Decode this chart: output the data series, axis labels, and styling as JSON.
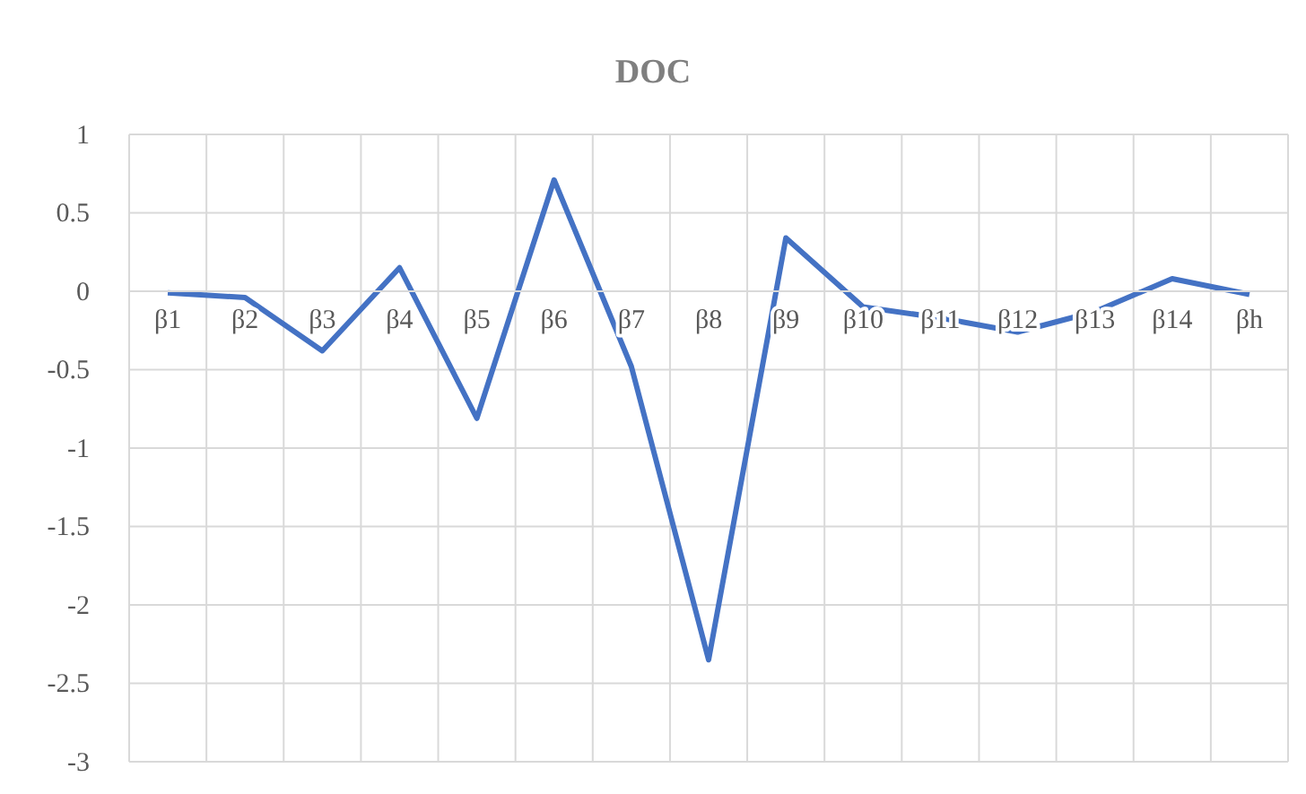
{
  "chart_data": {
    "type": "line",
    "title": "DOC",
    "categories": [
      "β1",
      "β2",
      "β3",
      "β4",
      "β5",
      "β6",
      "β7",
      "β8",
      "β9",
      "β10",
      "β11",
      "β12",
      "β13",
      "β14",
      "βh"
    ],
    "series": [
      {
        "color": "#4472c4",
        "values": [
          -0.01,
          -0.04,
          -0.38,
          0.15,
          -0.81,
          0.71,
          -0.48,
          -2.35,
          0.34,
          -0.1,
          -0.17,
          -0.26,
          -0.13,
          0.08,
          -0.02
        ]
      }
    ],
    "ylim": [
      -3,
      1
    ],
    "yticks": [
      -3,
      -2.5,
      -2,
      -1.5,
      -1,
      -0.5,
      0,
      0.5,
      1
    ],
    "grid": true,
    "marker": "none",
    "line_style": "solid"
  }
}
